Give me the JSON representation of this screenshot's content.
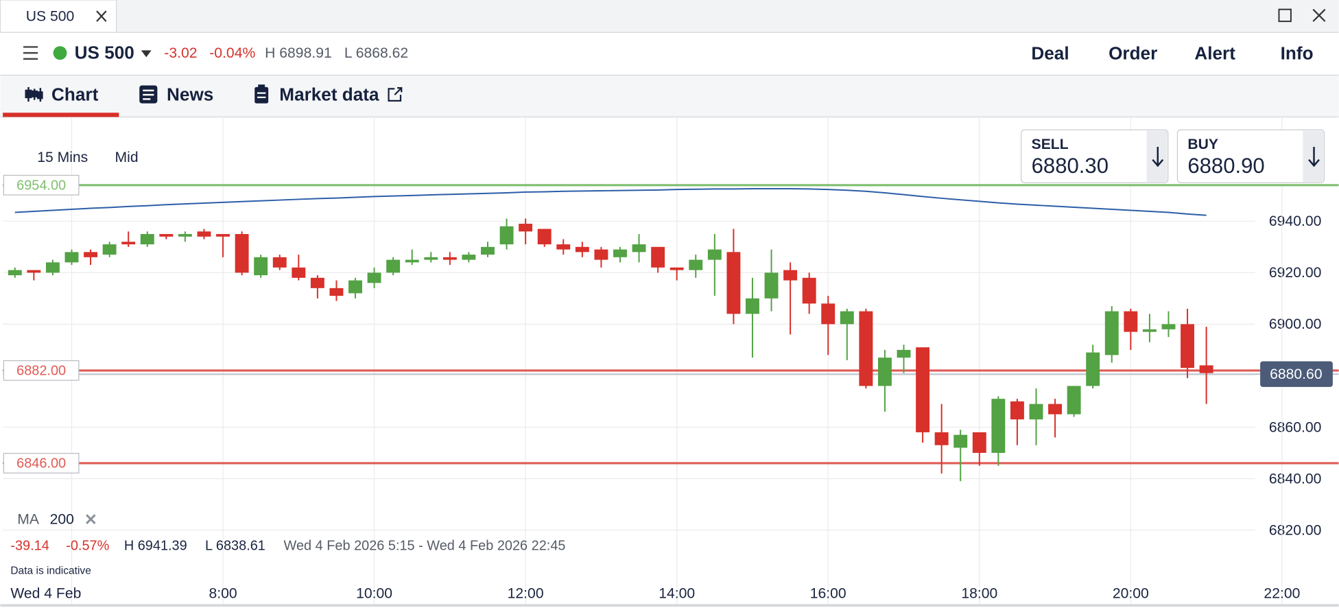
{
  "tab": {
    "title": "US 500"
  },
  "toolbar": {
    "instrument": "US 500",
    "change": "-3.02",
    "change_pct": "-0.04%",
    "high": "H 6898.91",
    "low": "L 6868.62",
    "actions": [
      "Deal",
      "Order",
      "Alert",
      "Info"
    ]
  },
  "nav": {
    "tabs": [
      "Chart",
      "News",
      "Market data"
    ]
  },
  "chart_settings": {
    "interval": "15 Mins",
    "price_type": "Mid"
  },
  "quotes": {
    "sell": {
      "label": "SELL",
      "price": "6880.30"
    },
    "buy": {
      "label": "BUY",
      "price": "6880.90"
    }
  },
  "summary": {
    "change": "-39.14",
    "change_pct": "-0.57%",
    "high": "H 6941.39",
    "low": "L 6838.61",
    "range": "Wed 4 Feb 2026 5:15 - Wed 4 Feb 2026 22:45",
    "note": "Data is indicative"
  },
  "chart_data": {
    "type": "candlestick",
    "x": [
      5.25,
      5.5,
      5.75,
      6,
      6.25,
      6.5,
      6.75,
      7,
      7.25,
      7.5,
      7.75,
      8,
      8.25,
      8.5,
      8.75,
      9,
      9.25,
      9.5,
      9.75,
      10,
      10.25,
      10.5,
      10.75,
      11,
      11.25,
      11.5,
      11.75,
      12,
      12.25,
      12.5,
      12.75,
      13,
      13.25,
      13.5,
      13.75,
      14,
      14.25,
      14.5,
      14.75,
      15,
      15.25,
      15.5,
      15.75,
      16,
      16.25,
      16.5,
      16.75,
      17,
      17.25,
      17.5,
      17.75,
      18,
      18.25,
      18.5,
      18.75,
      19,
      19.25,
      19.5,
      19.75,
      20,
      20.25,
      20.5,
      20.75,
      21
    ],
    "open": [
      6919,
      6921,
      6920,
      6924,
      6928,
      6927,
      6932,
      6931,
      6935,
      6934,
      6936,
      6935,
      6935,
      6919,
      6926,
      6922,
      6918,
      6914,
      6912,
      6916,
      6920,
      6924,
      6925,
      6926,
      6925,
      6927,
      6931,
      6939,
      6937,
      6931,
      6930,
      6929,
      6926,
      6928,
      6930,
      6922,
      6921,
      6925,
      6928,
      6904,
      6910,
      6921,
      6918,
      6908,
      6900,
      6905,
      6876,
      6887,
      6891,
      6858,
      6852,
      6858,
      6850,
      6870,
      6863,
      6869,
      6865,
      6876,
      6888,
      6905,
      6897,
      6898,
      6900,
      6884
    ],
    "high": [
      6922,
      6921,
      6925,
      6929,
      6929,
      6932,
      6936,
      6936,
      6935,
      6936,
      6937,
      6935,
      6936,
      6927,
      6927,
      6927,
      6919,
      6917,
      6918,
      6922,
      6926,
      6929,
      6928,
      6928,
      6928,
      6932,
      6941,
      6941,
      6937,
      6933,
      6932,
      6930,
      6930,
      6935,
      6930,
      6922,
      6927,
      6935,
      6937,
      6918,
      6929,
      6924,
      6920,
      6911,
      6906,
      6906,
      6890,
      6892,
      6891,
      6869,
      6859,
      6858,
      6872,
      6871,
      6875,
      6871,
      6876,
      6892,
      6907,
      6906,
      6904,
      6905,
      6906,
      6899
    ],
    "low": [
      6918,
      6917,
      6919,
      6923,
      6923,
      6926,
      6930,
      6930,
      6933,
      6932,
      6933,
      6926,
      6919,
      6918,
      6921,
      6917,
      6910,
      6909,
      6910,
      6914,
      6919,
      6923,
      6924,
      6923,
      6924,
      6926,
      6929,
      6931,
      6930,
      6927,
      6926,
      6922,
      6924,
      6924,
      6920,
      6917,
      6918,
      6911,
      6900,
      6887,
      6905,
      6896,
      6904,
      6888,
      6886,
      6875,
      6866,
      6881,
      6854,
      6842,
      6839,
      6845,
      6845,
      6853,
      6853,
      6856,
      6864,
      6875,
      6885,
      6890,
      6893,
      6895,
      6879,
      6869
    ],
    "close": [
      6921,
      6920,
      6924,
      6928,
      6926,
      6931,
      6931,
      6935,
      6934,
      6935,
      6934,
      6934,
      6920,
      6926,
      6922,
      6918,
      6914,
      6911,
      6917,
      6920,
      6925,
      6925,
      6926,
      6925,
      6927,
      6930,
      6938,
      6936,
      6931,
      6929,
      6928,
      6925,
      6929,
      6931,
      6922,
      6921,
      6925,
      6929,
      6904,
      6910,
      6920,
      6917,
      6908,
      6900,
      6905,
      6876,
      6887,
      6890,
      6858,
      6853,
      6857,
      6850,
      6871,
      6863,
      6869,
      6865,
      6876,
      6889,
      6905,
      6897,
      6898,
      6900,
      6883,
      6881
    ],
    "up_color": "#53a244",
    "down_color": "#d8302a",
    "xlim": [
      5.09,
      22.75
    ],
    "xticks": [
      {
        "value": 6,
        "label": "Wed 4 Feb"
      },
      {
        "value": 8,
        "label": "8:00"
      },
      {
        "value": 10,
        "label": "10:00"
      },
      {
        "value": 12,
        "label": "12:00"
      },
      {
        "value": 14,
        "label": "14:00"
      },
      {
        "value": 16,
        "label": "16:00"
      },
      {
        "value": 18,
        "label": "18:00"
      },
      {
        "value": 20,
        "label": "20:00"
      },
      {
        "value": 22,
        "label": "22:00"
      }
    ],
    "ylim": [
      6800,
      6980
    ],
    "yticks": [
      {
        "value": 6820,
        "label": "6820.00"
      },
      {
        "value": 6840,
        "label": "6840.00"
      },
      {
        "value": 6860,
        "label": "6860.00"
      },
      {
        "value": 6880,
        "label": "6880.00"
      },
      {
        "value": 6900,
        "label": "6900.00"
      },
      {
        "value": 6920,
        "label": "6920.00"
      },
      {
        "value": 6940,
        "label": "6940.00"
      }
    ],
    "grid": true,
    "ma": {
      "name": "MA",
      "period": 200,
      "color": "#2b5da8",
      "values": [
        6943.4,
        6943.8,
        6944.2,
        6944.6,
        6945.0,
        6945.3,
        6945.7,
        6946.0,
        6946.4,
        6946.7,
        6947.0,
        6947.3,
        6947.6,
        6947.9,
        6948.2,
        6948.5,
        6948.8,
        6949.0,
        6949.3,
        6949.6,
        6949.8,
        6950.0,
        6950.2,
        6950.4,
        6950.6,
        6950.8,
        6951.0,
        6951.3,
        6951.4,
        6951.6,
        6951.7,
        6951.8,
        6951.9,
        6952.0,
        6952.1,
        6952.3,
        6952.4,
        6952.5,
        6952.5,
        6952.6,
        6952.6,
        6952.6,
        6952.5,
        6952.3,
        6952.0,
        6951.6,
        6951.0,
        6950.3,
        6949.6,
        6948.9,
        6948.3,
        6947.7,
        6947.1,
        6946.6,
        6946.2,
        6945.8,
        6945.4,
        6945.0,
        6944.6,
        6944.2,
        6943.8,
        6943.4,
        6942.8,
        6942.3
      ]
    },
    "levels": [
      {
        "value": 6954,
        "label": "6954.00",
        "color": "#7fbf6f"
      },
      {
        "value": 6882,
        "label": "6882.00",
        "color": "#e05a55"
      },
      {
        "value": 6846,
        "label": "6846.00",
        "color": "#e05a55"
      }
    ],
    "last_price": {
      "value": 6880.6,
      "label": "6880.60",
      "color": "#4b5b78"
    }
  }
}
